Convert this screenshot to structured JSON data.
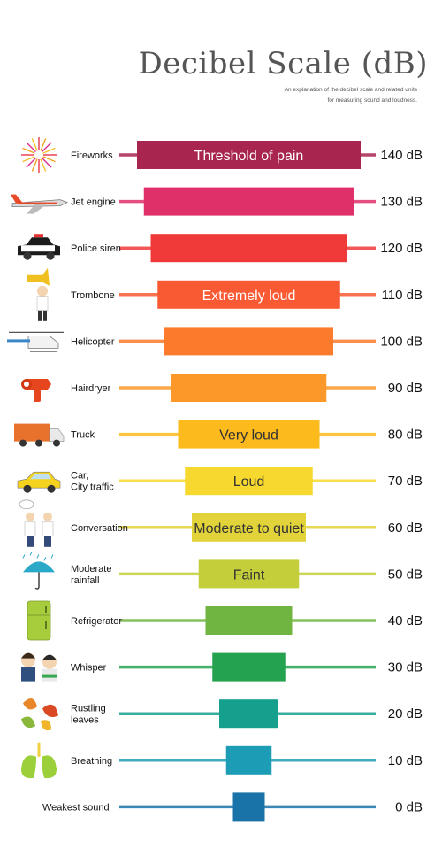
{
  "title": "Decibel Scale (dB)",
  "subtitle_line1": "An explanation of the decibel scale and related units",
  "subtitle_line2": "for measuring sound and loudness.",
  "chart_data": {
    "type": "bar",
    "title": "Decibel Scale (dB)",
    "unit": "dB",
    "rows": [
      {
        "label": [
          "Fireworks"
        ],
        "value": 140,
        "value_label": "140 dB",
        "band": "Threshold of pain",
        "color": "#A8254F",
        "icon": "fireworks-icon"
      },
      {
        "label": [
          "Jet engine"
        ],
        "value": 130,
        "value_label": "130 dB",
        "band": "",
        "color": "#E0306A",
        "icon": "jet-engine-icon"
      },
      {
        "label": [
          "Police siren"
        ],
        "value": 120,
        "value_label": "120 dB",
        "band": "",
        "color": "#F03A3A",
        "icon": "police-car-icon"
      },
      {
        "label": [
          "Trombone"
        ],
        "value": 110,
        "value_label": "110 dB",
        "band": "Extremely loud",
        "color": "#FA5A33",
        "icon": "trombone-player-icon"
      },
      {
        "label": [
          "Helicopter"
        ],
        "value": 100,
        "value_label": "100 dB",
        "band": "",
        "color": "#FB7A2C",
        "icon": "helicopter-icon"
      },
      {
        "label": [
          "Hairdryer"
        ],
        "value": 90,
        "value_label": "90 dB",
        "band": "",
        "color": "#FC972A",
        "icon": "hairdryer-icon"
      },
      {
        "label": [
          "Truck"
        ],
        "value": 80,
        "value_label": "80 dB",
        "band": "Very loud",
        "color": "#FDBA1C",
        "icon": "truck-icon"
      },
      {
        "label": [
          "Car,",
          "City traffic"
        ],
        "value": 70,
        "value_label": "70 dB",
        "band": "Loud",
        "color": "#F7D82E",
        "icon": "car-icon"
      },
      {
        "label": [
          "Conversation"
        ],
        "value": 60,
        "value_label": "60 dB",
        "band": "Moderate to quiet",
        "color": "#E2D33A",
        "icon": "conversation-icon"
      },
      {
        "label": [
          "Moderate",
          "rainfall"
        ],
        "value": 50,
        "value_label": "50 dB",
        "band": "Faint",
        "color": "#C3CE3A",
        "icon": "umbrella-rain-icon"
      },
      {
        "label": [
          "Refrigerator"
        ],
        "value": 40,
        "value_label": "40 dB",
        "band": "",
        "color": "#70B441",
        "icon": "refrigerator-icon"
      },
      {
        "label": [
          "Whisper"
        ],
        "value": 30,
        "value_label": "30 dB",
        "band": "",
        "color": "#24A24F",
        "icon": "whisper-icon"
      },
      {
        "label": [
          "Rustling",
          "leaves"
        ],
        "value": 20,
        "value_label": "20 dB",
        "band": "",
        "color": "#14A08D",
        "icon": "leaves-icon"
      },
      {
        "label": [
          "Breathing"
        ],
        "value": 10,
        "value_label": "10 dB",
        "band": "",
        "color": "#1D9CB5",
        "icon": "lungs-icon"
      },
      {
        "label": [
          "Weakest sound"
        ],
        "value": 0,
        "value_label": "0 dB",
        "band": "",
        "color": "#1A73A8",
        "icon": ""
      }
    ]
  }
}
